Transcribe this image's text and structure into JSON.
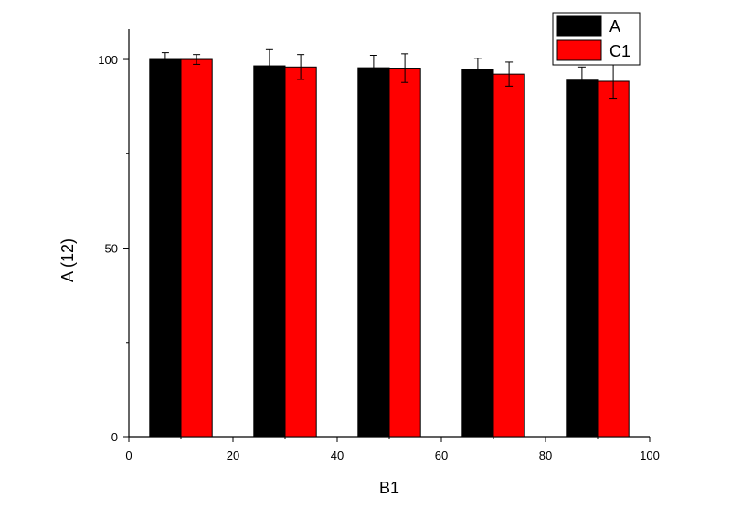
{
  "chart_data": {
    "type": "bar",
    "title": "",
    "xlabel": "B1",
    "ylabel": "A (12)",
    "xlim": [
      0,
      100
    ],
    "ylim": [
      0,
      108
    ],
    "x_ticks": [
      0,
      20,
      40,
      60,
      80,
      100
    ],
    "y_ticks": [
      0,
      50,
      100
    ],
    "x": [
      10,
      30,
      50,
      70,
      90
    ],
    "grid": false,
    "legend_position": "top-right",
    "error_bars": true,
    "series": [
      {
        "name": "A",
        "color": "#000000",
        "values": [
          100,
          98.3,
          97.8,
          97.3,
          94.5
        ],
        "errors": [
          1.8,
          4.3,
          3.3,
          3.0,
          3.5
        ]
      },
      {
        "name": "C1",
        "color": "#ff0000",
        "values": [
          100,
          98.0,
          97.7,
          96.1,
          94.2
        ],
        "errors": [
          1.3,
          3.3,
          3.8,
          3.2,
          4.5
        ]
      }
    ]
  }
}
